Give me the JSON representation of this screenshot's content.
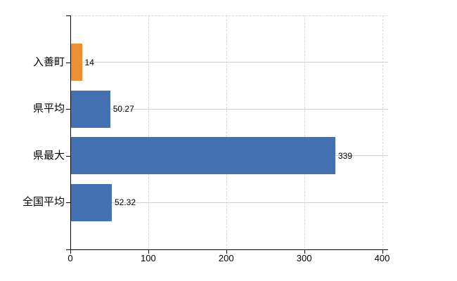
{
  "chart_data": {
    "type": "bar",
    "orientation": "horizontal",
    "title": "",
    "xlabel": "",
    "ylabel": "",
    "categories": [
      "入善町",
      "県平均",
      "県最大",
      "全国平均"
    ],
    "values": [
      14,
      50.27,
      339,
      52.32
    ],
    "value_labels": [
      "14",
      "50.27",
      "339",
      "52.32"
    ],
    "series_colors": [
      "#EC8E34",
      "#4371B1",
      "#4371B1",
      "#4371B1"
    ],
    "x_ticks": [
      0,
      100,
      200,
      300,
      400
    ],
    "x_tick_labels": [
      "0",
      "100",
      "200",
      "300",
      "400"
    ],
    "xlim": [
      0,
      400
    ],
    "grid": true,
    "grid_horizontal_style": "solid",
    "grid_vertical_style": "dashed",
    "legend": false
  },
  "colors": {
    "background": "#ffffff",
    "axis": "#000000",
    "grid_horizontal": "#ccd3cc",
    "grid_vertical": "#d9d9d9",
    "text": "#000000",
    "bar_highlight": "#EC8E34",
    "bar_default": "#4371B1"
  }
}
